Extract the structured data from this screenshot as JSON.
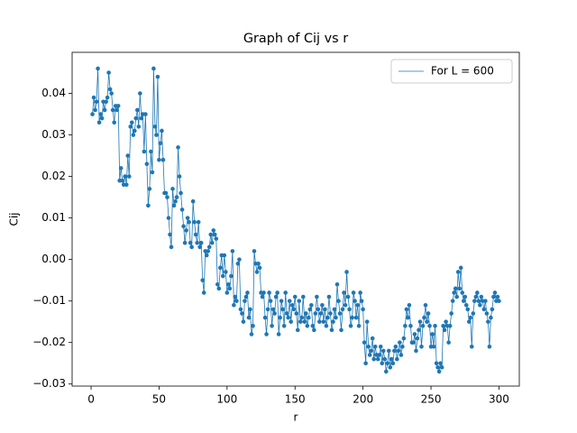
{
  "chart_data": {
    "type": "line",
    "title": "Graph of Cij vs r",
    "x_label": "r",
    "y_label": "Cij",
    "x": [
      1,
      2,
      3,
      4,
      5,
      6,
      7,
      8,
      9,
      10,
      11,
      12,
      13,
      14,
      15,
      16,
      17,
      18,
      19,
      20,
      21,
      22,
      23,
      24,
      25,
      26,
      27,
      28,
      29,
      30,
      31,
      32,
      33,
      34,
      35,
      36,
      37,
      38,
      39,
      40,
      41,
      42,
      43,
      44,
      45,
      46,
      47,
      48,
      49,
      50,
      51,
      52,
      53,
      54,
      55,
      56,
      57,
      58,
      59,
      60,
      61,
      62,
      63,
      64,
      65,
      66,
      67,
      68,
      69,
      70,
      71,
      72,
      73,
      74,
      75,
      76,
      77,
      78,
      79,
      80,
      81,
      82,
      83,
      84,
      85,
      86,
      87,
      88,
      89,
      90,
      91,
      92,
      93,
      94,
      95,
      96,
      97,
      98,
      99,
      100,
      101,
      102,
      103,
      104,
      105,
      106,
      107,
      108,
      109,
      110,
      111,
      112,
      113,
      114,
      115,
      116,
      117,
      118,
      119,
      120,
      121,
      122,
      123,
      124,
      125,
      126,
      127,
      128,
      129,
      130,
      131,
      132,
      133,
      134,
      135,
      136,
      137,
      138,
      139,
      140,
      141,
      142,
      143,
      144,
      145,
      146,
      147,
      148,
      149,
      150,
      151,
      152,
      153,
      154,
      155,
      156,
      157,
      158,
      159,
      160,
      161,
      162,
      163,
      164,
      165,
      166,
      167,
      168,
      169,
      170,
      171,
      172,
      173,
      174,
      175,
      176,
      177,
      178,
      179,
      180,
      181,
      182,
      183,
      184,
      185,
      186,
      187,
      188,
      189,
      190,
      191,
      192,
      193,
      194,
      195,
      196,
      197,
      198,
      199,
      200,
      201,
      202,
      203,
      204,
      205,
      206,
      207,
      208,
      209,
      210,
      211,
      212,
      213,
      214,
      215,
      216,
      217,
      218,
      219,
      220,
      221,
      222,
      223,
      224,
      225,
      226,
      227,
      228,
      229,
      230,
      231,
      232,
      233,
      234,
      235,
      236,
      237,
      238,
      239,
      240,
      241,
      242,
      243,
      244,
      245,
      246,
      247,
      248,
      249,
      250,
      251,
      252,
      253,
      254,
      255,
      256,
      257,
      258,
      259,
      260,
      261,
      262,
      263,
      264,
      265,
      266,
      267,
      268,
      269,
      270,
      271,
      272,
      273,
      274,
      275,
      276,
      277,
      278,
      279,
      280,
      281,
      282,
      283,
      284,
      285,
      286,
      287,
      288,
      289,
      290,
      291,
      292,
      293,
      294,
      295,
      296,
      297,
      298,
      299,
      300
    ],
    "series": [
      {
        "name": "For L = 600",
        "color": "#1f77b4",
        "values": [
          0.035,
          0.039,
          0.036,
          0.038,
          0.046,
          0.033,
          0.035,
          0.034,
          0.038,
          0.036,
          0.038,
          0.039,
          0.045,
          0.041,
          0.04,
          0.036,
          0.033,
          0.037,
          0.036,
          0.037,
          0.019,
          0.022,
          0.019,
          0.018,
          0.02,
          0.018,
          0.025,
          0.02,
          0.032,
          0.033,
          0.03,
          0.031,
          0.034,
          0.036,
          0.032,
          0.04,
          0.034,
          0.035,
          0.026,
          0.035,
          0.023,
          0.013,
          0.017,
          0.026,
          0.021,
          0.046,
          0.032,
          0.03,
          0.044,
          0.024,
          0.028,
          0.031,
          0.024,
          0.016,
          0.016,
          0.015,
          0.01,
          0.006,
          0.003,
          0.017,
          0.013,
          0.014,
          0.015,
          0.027,
          0.02,
          0.016,
          0.012,
          0.008,
          0.004,
          0.007,
          0.01,
          0.009,
          0.004,
          0.003,
          0.014,
          0.009,
          0.006,
          0.004,
          0.009,
          0.003,
          0.004,
          -0.005,
          -0.008,
          0.002,
          0.001,
          0.002,
          0.003,
          0.006,
          0.004,
          0.007,
          0.006,
          0.005,
          -0.006,
          -0.007,
          -0.002,
          0.001,
          -0.004,
          0.001,
          -0.003,
          -0.008,
          -0.006,
          -0.007,
          -0.004,
          0.002,
          -0.011,
          -0.009,
          -0.01,
          -0.001,
          0.0,
          -0.012,
          -0.013,
          -0.015,
          -0.01,
          -0.009,
          -0.008,
          -0.014,
          -0.012,
          -0.018,
          -0.016,
          0.002,
          -0.001,
          -0.003,
          -0.001,
          -0.002,
          -0.008,
          -0.009,
          -0.008,
          -0.014,
          -0.018,
          -0.012,
          -0.008,
          -0.01,
          -0.016,
          -0.012,
          -0.013,
          -0.009,
          -0.008,
          -0.018,
          -0.014,
          -0.01,
          -0.012,
          -0.016,
          -0.008,
          -0.013,
          -0.014,
          -0.01,
          -0.015,
          -0.011,
          -0.012,
          -0.009,
          -0.013,
          -0.017,
          -0.01,
          -0.015,
          -0.014,
          -0.009,
          -0.015,
          -0.013,
          -0.016,
          -0.014,
          -0.012,
          -0.011,
          -0.016,
          -0.017,
          -0.013,
          -0.009,
          -0.012,
          -0.015,
          -0.013,
          -0.011,
          -0.015,
          -0.012,
          -0.016,
          -0.014,
          -0.009,
          -0.013,
          -0.017,
          -0.015,
          -0.012,
          -0.014,
          -0.006,
          -0.01,
          -0.013,
          -0.017,
          -0.012,
          -0.008,
          -0.011,
          -0.003,
          -0.009,
          -0.012,
          -0.016,
          -0.014,
          -0.008,
          -0.01,
          -0.014,
          -0.011,
          -0.016,
          -0.008,
          -0.01,
          -0.012,
          -0.02,
          -0.025,
          -0.015,
          -0.021,
          -0.023,
          -0.022,
          -0.019,
          -0.024,
          -0.021,
          -0.023,
          -0.024,
          -0.023,
          -0.021,
          -0.025,
          -0.022,
          -0.024,
          -0.027,
          -0.025,
          -0.022,
          -0.026,
          -0.024,
          -0.025,
          -0.022,
          -0.021,
          -0.024,
          -0.022,
          -0.02,
          -0.023,
          -0.021,
          -0.019,
          -0.016,
          -0.012,
          -0.014,
          -0.011,
          -0.016,
          -0.02,
          -0.02,
          -0.018,
          -0.022,
          -0.019,
          -0.017,
          -0.015,
          -0.021,
          -0.016,
          -0.014,
          -0.011,
          -0.015,
          -0.013,
          -0.016,
          -0.021,
          -0.018,
          -0.021,
          -0.016,
          -0.025,
          -0.026,
          -0.027,
          -0.025,
          -0.026,
          -0.016,
          -0.017,
          -0.015,
          -0.016,
          -0.02,
          -0.016,
          -0.013,
          -0.01,
          -0.008,
          -0.007,
          -0.009,
          -0.003,
          -0.007,
          -0.002,
          -0.008,
          -0.01,
          -0.009,
          -0.011,
          -0.012,
          -0.015,
          -0.014,
          -0.021,
          -0.013,
          -0.01,
          -0.009,
          -0.008,
          -0.01,
          -0.011,
          -0.009,
          -0.01,
          -0.012,
          -0.01,
          -0.013,
          -0.015,
          -0.021,
          -0.014,
          -0.012,
          -0.009,
          -0.008,
          -0.01,
          -0.009,
          -0.01
        ]
      }
    ],
    "xlim": [
      -13.95,
      314.95
    ],
    "ylim": [
      -0.0305,
      0.0499
    ],
    "xticks": [
      0,
      50,
      100,
      150,
      200,
      250,
      300
    ],
    "yticks": [
      {
        "value": -0.03,
        "label": "−0.03"
      },
      {
        "value": -0.02,
        "label": "−0.02"
      },
      {
        "value": -0.01,
        "label": "−0.01"
      },
      {
        "value": 0,
        "label": "0.00"
      },
      0.01,
      0.02,
      0.03,
      0.04
    ],
    "legend": "upper right"
  }
}
